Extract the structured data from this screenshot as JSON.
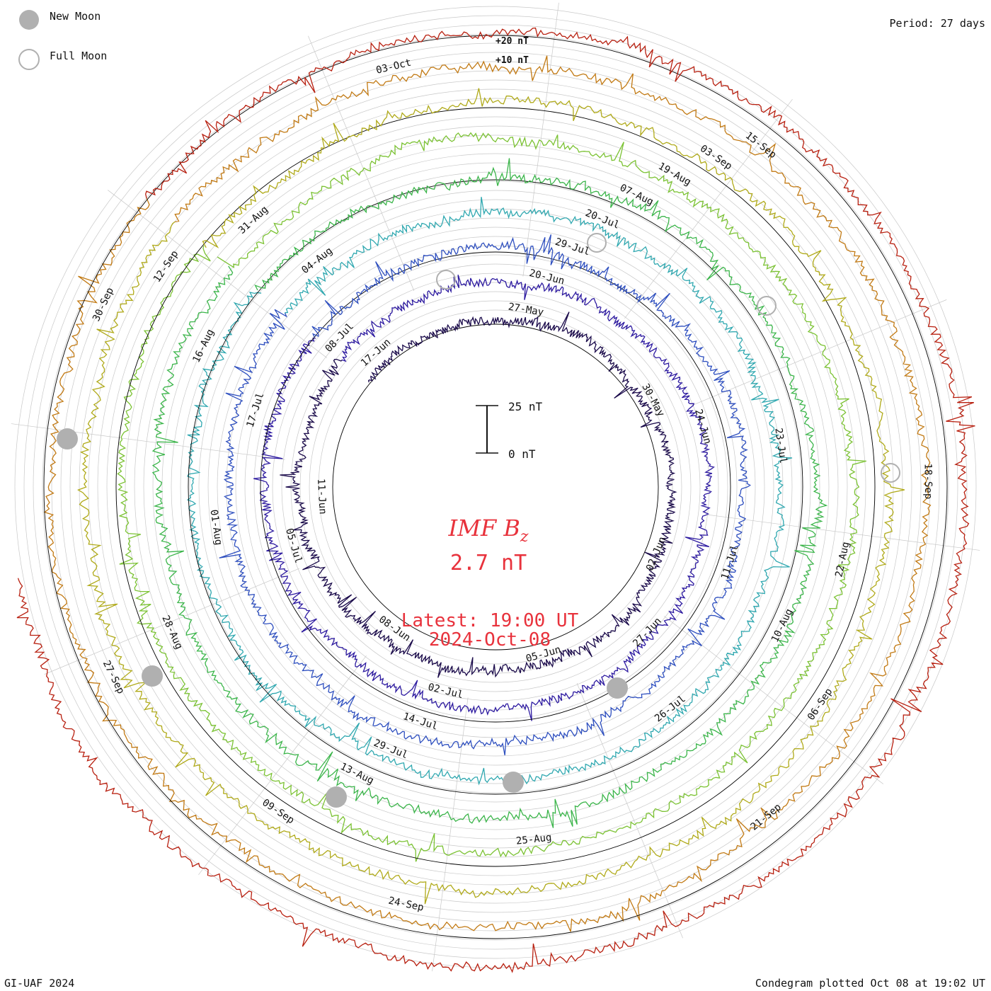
{
  "legend": {
    "new_moon_label": "New Moon",
    "full_moon_label": "Full Moon"
  },
  "header": {
    "period": "Period: 27 days"
  },
  "footer": {
    "credit": "GI-UAF 2024",
    "plotted": "Condegram plotted Oct 08 at 19:02 UT"
  },
  "center": {
    "quantity_main": "IMF B",
    "quantity_sub": "z",
    "value": "2.7 nT",
    "latest_line": "Latest: 19:00 UT",
    "date_line": "2024-Oct-08",
    "scale_top": "25 nT",
    "scale_bottom": "0 nT"
  },
  "ring_labels": [
    "+20 nT",
    "+10 nT"
  ],
  "colors": {
    "moon_fill": "#b0b0b0",
    "grid": "#c8c8c8",
    "accent": "#e8323c"
  },
  "chart_data": {
    "type": "line",
    "period_days": 27,
    "units": "nT",
    "series": [
      {
        "color": "#1a0a4a",
        "start": "2024-May-27"
      },
      {
        "color": "#2d1aa0",
        "start": "2024-Jun-20"
      },
      {
        "color": "#2e4fbf",
        "start": "2024-Jun-24"
      },
      {
        "color": "#30a8b0",
        "start": "2024-Jul-17"
      },
      {
        "color": "#3bb54a",
        "start": "2024-Jul-20"
      },
      {
        "color": "#7bc233",
        "start": "2024-Aug-13"
      },
      {
        "color": "#b0aa1a",
        "start": "2024-Aug-16"
      },
      {
        "color": "#c27a14",
        "start": "2024-Sep-09"
      },
      {
        "color": "#b82010",
        "start": "2024-Sep-12"
      }
    ],
    "date_labels": [
      {
        "text": "27-May",
        "ring": 1
      },
      {
        "text": "30-May",
        "ring": 1
      },
      {
        "text": "02-Jun",
        "ring": 1
      },
      {
        "text": "05-Jun",
        "ring": 1
      },
      {
        "text": "08-Jun",
        "ring": 1
      },
      {
        "text": "11-Jun",
        "ring": 1
      },
      {
        "text": "17-Jun",
        "ring": 1
      },
      {
        "text": "20-Jun",
        "ring": 2
      },
      {
        "text": "24-Jun",
        "ring": 2
      },
      {
        "text": "27-Jun",
        "ring": 2
      },
      {
        "text": "29-Jul",
        "ring": 3
      },
      {
        "text": "02-Jul",
        "ring": 2
      },
      {
        "text": "05-Jul",
        "ring": 2
      },
      {
        "text": "08-Jul",
        "ring": 2
      },
      {
        "text": "11-Jul",
        "ring": 3
      },
      {
        "text": "14-Jul",
        "ring": 3
      },
      {
        "text": "17-Jul",
        "ring": 3
      },
      {
        "text": "20-Jul",
        "ring": 4
      },
      {
        "text": "23-Jul",
        "ring": 4
      },
      {
        "text": "26-Jul",
        "ring": 4
      },
      {
        "text": "29-Jul",
        "ring": 4
      },
      {
        "text": "01-Aug",
        "ring": 4
      },
      {
        "text": "04-Aug",
        "ring": 4
      },
      {
        "text": "07-Aug",
        "ring": 5
      },
      {
        "text": "10-Aug",
        "ring": 5
      },
      {
        "text": "13-Aug",
        "ring": 5
      },
      {
        "text": "16-Aug",
        "ring": 5
      },
      {
        "text": "19-Aug",
        "ring": 6
      },
      {
        "text": "22-Aug",
        "ring": 6
      },
      {
        "text": "25-Aug",
        "ring": 6
      },
      {
        "text": "28-Aug",
        "ring": 6
      },
      {
        "text": "31-Aug",
        "ring": 6
      },
      {
        "text": "03-Sep",
        "ring": 7
      },
      {
        "text": "06-Sep",
        "ring": 7
      },
      {
        "text": "09-Sep",
        "ring": 7
      },
      {
        "text": "12-Sep",
        "ring": 7
      },
      {
        "text": "15-Sep",
        "ring": 8
      },
      {
        "text": "18-Sep",
        "ring": 8
      },
      {
        "text": "21-Sep",
        "ring": 8
      },
      {
        "text": "24-Sep",
        "ring": 8
      },
      {
        "text": "27-Sep",
        "ring": 8
      },
      {
        "text": "30-Sep",
        "ring": 8
      },
      {
        "text": "03-Oct",
        "ring": 8
      }
    ],
    "new_moons": [
      "2024-Jun-06",
      "2024-Jul-05",
      "2024-Aug-04",
      "2024-Sep-03",
      "2024-Oct-02"
    ],
    "full_moons": [
      "2024-Jun-22",
      "2024-Jul-21",
      "2024-Aug-19",
      "2024-Sep-18"
    ]
  }
}
